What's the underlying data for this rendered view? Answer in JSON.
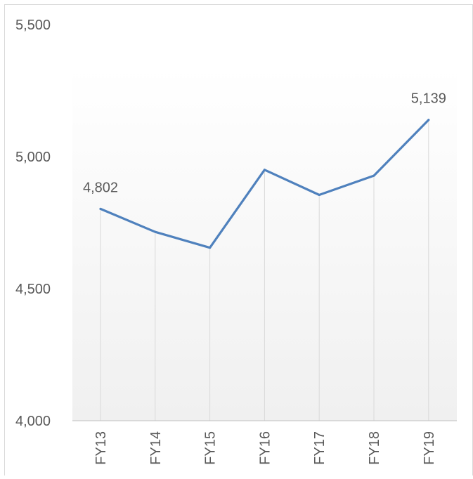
{
  "chart_data": {
    "type": "line",
    "title": "",
    "xlabel": "",
    "ylabel": "",
    "categories": [
      "FY13",
      "FY14",
      "FY15",
      "FY16",
      "FY17",
      "FY18",
      "FY19"
    ],
    "series": [
      {
        "values": [
          4802,
          4715,
          4655,
          4950,
          4855,
          4928,
          5139
        ]
      }
    ],
    "data_labels": {
      "FY13": "4,802",
      "FY19": "5,139"
    },
    "ylim": [
      4000,
      5500
    ],
    "yticks": [
      "4,000",
      "4,500",
      "5,000",
      "5,500"
    ],
    "ytick_values": [
      4000,
      4500,
      5000,
      5500
    ],
    "grid": "vertical",
    "legend": "none",
    "colors": {
      "line": "#4f81bd",
      "grid": "#d9d9d9",
      "axis": "#bfbfbf",
      "text": "#595959",
      "background_top": "#ffffff",
      "background_bottom": "#f0f0f0"
    }
  }
}
